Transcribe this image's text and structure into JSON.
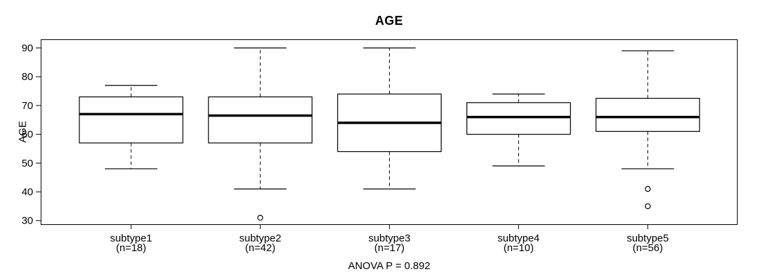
{
  "figure": {
    "background": "#ffffff",
    "foreground": "#000000"
  },
  "chart_data": {
    "type": "boxplot",
    "title": "AGE",
    "ylabel": "AGE",
    "footnote": "ANOVA P = 0.892",
    "ylim": [
      28.5,
      93
    ],
    "yticks": [
      30,
      40,
      50,
      60,
      70,
      80,
      90
    ],
    "grid": false,
    "legend": false,
    "groups": [
      {
        "label": "subtype1",
        "sublabel": "(n=18)",
        "whisker_low": 48,
        "q1": 57,
        "median": 67,
        "q3": 73,
        "whisker_high": 77,
        "outliers": []
      },
      {
        "label": "subtype2",
        "sublabel": "(n=42)",
        "whisker_low": 41,
        "q1": 57,
        "median": 66.5,
        "q3": 73,
        "whisker_high": 90,
        "outliers": [
          31
        ]
      },
      {
        "label": "subtype3",
        "sublabel": "(n=17)",
        "whisker_low": 41,
        "q1": 54,
        "median": 64,
        "q3": 74,
        "whisker_high": 90,
        "outliers": []
      },
      {
        "label": "subtype4",
        "sublabel": "(n=10)",
        "whisker_low": 49,
        "q1": 60,
        "median": 66,
        "q3": 71,
        "whisker_high": 74,
        "outliers": []
      },
      {
        "label": "subtype5",
        "sublabel": "(n=56)",
        "whisker_low": 48,
        "q1": 61,
        "median": 66,
        "q3": 72.5,
        "whisker_high": 89,
        "outliers": [
          41,
          35
        ]
      }
    ]
  }
}
